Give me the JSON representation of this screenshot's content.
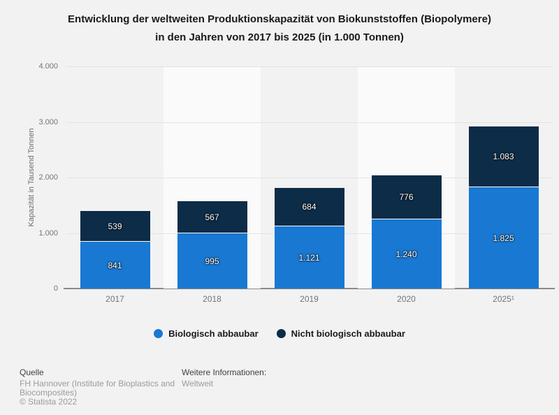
{
  "title": {
    "line1": "Entwicklung der weltweiten Produktionskapazität von Biokunststoffen (Biopolymere)",
    "line2": "in den Jahren von 2017 bis 2025 (in 1.000 Tonnen)"
  },
  "chart_data": {
    "type": "bar",
    "stacked": true,
    "categories": [
      "2017",
      "2018",
      "2019",
      "2020",
      "2025¹"
    ],
    "series": [
      {
        "name": "Biologisch abbaubar",
        "color": "#1878d2",
        "values": [
          841,
          995,
          1121,
          1240,
          1825
        ],
        "labels": [
          "841",
          "995",
          "1.121",
          "1.240",
          "1.825"
        ]
      },
      {
        "name": "Nicht biologisch abbaubar",
        "color": "#0d2c47",
        "values": [
          539,
          567,
          684,
          776,
          1083
        ],
        "labels": [
          "539",
          "567",
          "684",
          "776",
          "1.083"
        ]
      }
    ],
    "totals": [
      1380,
      1562,
      1805,
      2016,
      2908
    ],
    "title": "Entwicklung der weltweiten Produktionskapazität von Biokunststoffen (Biopolymere) in den Jahren von 2017 bis 2025 (in 1.000 Tonnen)",
    "xlabel": "",
    "ylabel": "Kapazität in Tausend Tonnen",
    "ylim": [
      0,
      4000
    ],
    "yticks": [
      {
        "value": 0,
        "label": "0"
      },
      {
        "value": 1000,
        "label": "1.000"
      },
      {
        "value": 2000,
        "label": "2.000"
      },
      {
        "value": 3000,
        "label": "3.000"
      },
      {
        "value": 4000,
        "label": "4.000"
      }
    ],
    "grid": true,
    "legend_position": "bottom"
  },
  "footer": {
    "source_heading": "Quelle",
    "source_lines": [
      "FH Hannover (Institute for Bioplastics and",
      "Biocomposites)"
    ],
    "copyright": "© Statista 2022",
    "info_heading": "Weitere Informationen:",
    "info_value": "Weltweit"
  }
}
